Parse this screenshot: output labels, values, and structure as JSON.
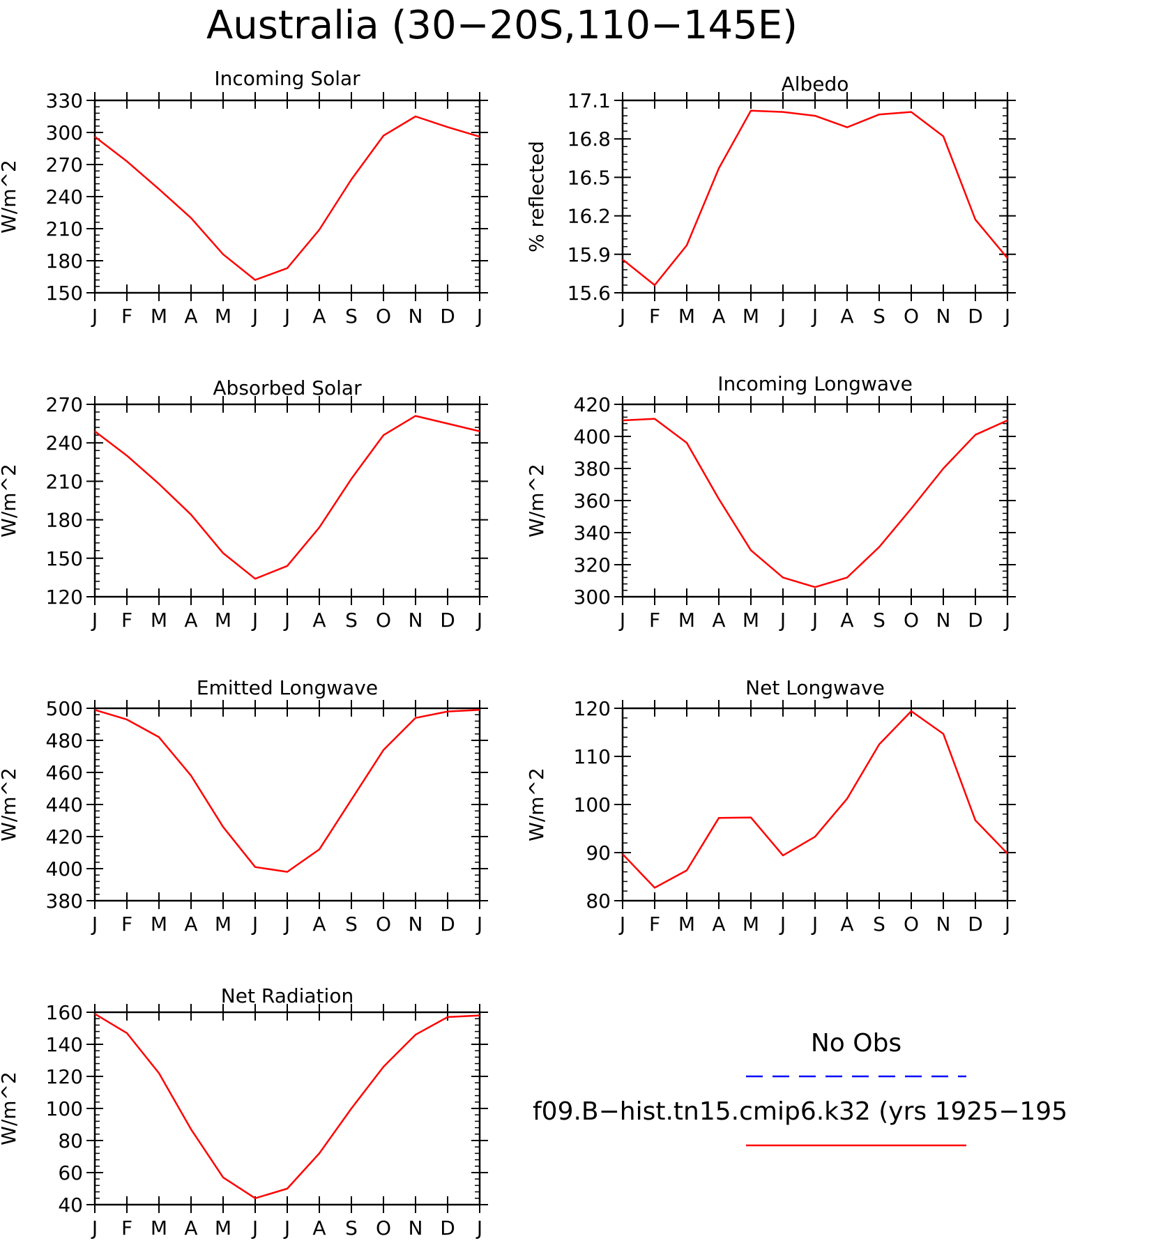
{
  "page": {
    "title": "Australia (30−20S,110−145E)"
  },
  "legend": {
    "obs_label": "No Obs",
    "obs_color": "#0000ff",
    "model_label": "f09.B−hist.tn15.cmip6.k32 (yrs 1925−195",
    "model_color": "#ff0000"
  },
  "chart_data": [
    {
      "type": "line",
      "title": "Incoming Solar",
      "ylabel": "W/m^2",
      "xlabel": "",
      "categories": [
        "J",
        "F",
        "M",
        "A",
        "M",
        "J",
        "J",
        "A",
        "S",
        "O",
        "N",
        "D",
        "J"
      ],
      "ylim": [
        150,
        330
      ],
      "yticks": [
        150,
        180,
        210,
        240,
        270,
        300,
        330
      ],
      "ytick_labels": [
        "150",
        "180",
        "210",
        "240",
        "270",
        "300",
        "330"
      ],
      "grid": false,
      "series": [
        {
          "color": "#ff0000",
          "values": [
            296,
            273,
            247,
            220,
            186,
            162,
            173,
            209,
            256,
            297,
            315,
            305,
            296
          ]
        }
      ]
    },
    {
      "type": "line",
      "title": "Albedo",
      "ylabel": "% reflected",
      "xlabel": "",
      "categories": [
        "J",
        "F",
        "M",
        "A",
        "M",
        "J",
        "J",
        "A",
        "S",
        "O",
        "N",
        "D",
        "J"
      ],
      "ylim": [
        15.6,
        17.1
      ],
      "yticks": [
        15.6,
        15.9,
        16.2,
        16.5,
        16.8,
        17.1
      ],
      "ytick_labels": [
        "15.6",
        "15.9",
        "16.2",
        "16.5",
        "16.8",
        "17.1"
      ],
      "grid": false,
      "series": [
        {
          "color": "#ff0000",
          "values": [
            15.86,
            15.66,
            15.97,
            16.57,
            17.02,
            17.01,
            16.98,
            16.89,
            16.99,
            17.01,
            16.82,
            16.17,
            15.87
          ]
        }
      ]
    },
    {
      "type": "line",
      "title": "Absorbed Solar",
      "ylabel": "W/m^2",
      "xlabel": "",
      "categories": [
        "J",
        "F",
        "M",
        "A",
        "M",
        "J",
        "J",
        "A",
        "S",
        "O",
        "N",
        "D",
        "J"
      ],
      "ylim": [
        120,
        270
      ],
      "yticks": [
        120,
        150,
        180,
        210,
        240,
        270
      ],
      "ytick_labels": [
        "120",
        "150",
        "180",
        "210",
        "240",
        "270"
      ],
      "grid": false,
      "series": [
        {
          "color": "#ff0000",
          "values": [
            249,
            230,
            208,
            184,
            154,
            134,
            144,
            174,
            212,
            246,
            261,
            255,
            249
          ]
        }
      ]
    },
    {
      "type": "line",
      "title": "Incoming Longwave",
      "ylabel": "W/m^2",
      "xlabel": "",
      "categories": [
        "J",
        "F",
        "M",
        "A",
        "M",
        "J",
        "J",
        "A",
        "S",
        "O",
        "N",
        "D",
        "J"
      ],
      "ylim": [
        300,
        420
      ],
      "yticks": [
        300,
        320,
        340,
        360,
        380,
        400,
        420
      ],
      "ytick_labels": [
        "300",
        "320",
        "340",
        "360",
        "380",
        "400",
        "420"
      ],
      "grid": false,
      "series": [
        {
          "color": "#ff0000",
          "values": [
            410,
            411,
            396,
            361,
            329,
            312,
            306,
            312,
            331,
            355,
            380,
            401,
            410
          ]
        }
      ]
    },
    {
      "type": "line",
      "title": "Emitted Longwave",
      "ylabel": "W/m^2",
      "xlabel": "",
      "categories": [
        "J",
        "F",
        "M",
        "A",
        "M",
        "J",
        "J",
        "A",
        "S",
        "O",
        "N",
        "D",
        "J"
      ],
      "ylim": [
        380,
        500
      ],
      "yticks": [
        380,
        400,
        420,
        440,
        460,
        480,
        500
      ],
      "ytick_labels": [
        "380",
        "400",
        "420",
        "440",
        "460",
        "480",
        "500"
      ],
      "grid": false,
      "series": [
        {
          "color": "#ff0000",
          "values": [
            499,
            493,
            482,
            458,
            426,
            401,
            398,
            412,
            443,
            474,
            494,
            498,
            499
          ]
        }
      ]
    },
    {
      "type": "line",
      "title": "Net Longwave",
      "ylabel": "W/m^2",
      "xlabel": "",
      "categories": [
        "J",
        "F",
        "M",
        "A",
        "M",
        "J",
        "J",
        "A",
        "S",
        "O",
        "N",
        "D",
        "J"
      ],
      "ylim": [
        80,
        120
      ],
      "yticks": [
        80,
        90,
        100,
        110,
        120
      ],
      "ytick_labels": [
        "80",
        "90",
        "100",
        "110",
        "120"
      ],
      "grid": false,
      "series": [
        {
          "color": "#ff0000",
          "values": [
            89.7,
            82.7,
            86.3,
            97.2,
            97.3,
            89.4,
            93.3,
            101.2,
            112.5,
            119.4,
            114.7,
            96.7,
            89.8
          ]
        }
      ]
    },
    {
      "type": "line",
      "title": "Net Radiation",
      "ylabel": "W/m^2",
      "xlabel": "",
      "categories": [
        "J",
        "F",
        "M",
        "A",
        "M",
        "J",
        "J",
        "A",
        "S",
        "O",
        "N",
        "D",
        "J"
      ],
      "ylim": [
        40,
        160
      ],
      "yticks": [
        40,
        60,
        80,
        100,
        120,
        140,
        160
      ],
      "ytick_labels": [
        "40",
        "60",
        "80",
        "100",
        "120",
        "140",
        "160"
      ],
      "grid": false,
      "series": [
        {
          "color": "#ff0000",
          "values": [
            159,
            147,
            122,
            87,
            57,
            44,
            50,
            72,
            100,
            126,
            146,
            157,
            158
          ]
        }
      ]
    }
  ]
}
